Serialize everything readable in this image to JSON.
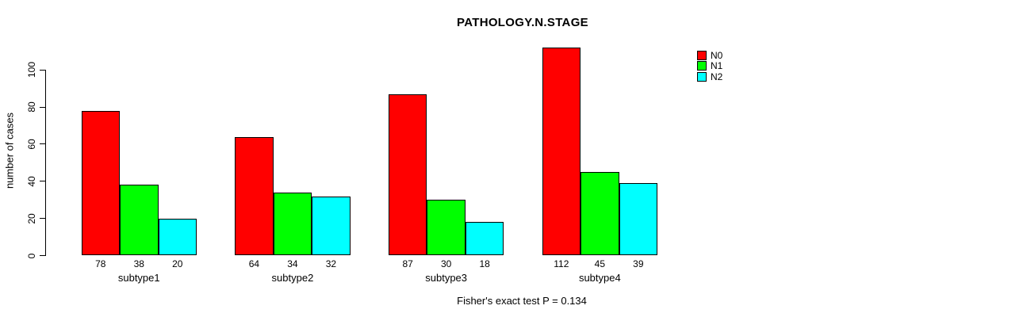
{
  "chart_data": {
    "type": "bar",
    "layout": "grouped",
    "title": "PATHOLOGY.N.STAGE",
    "xlabel": "",
    "ylabel": "number of cases",
    "annotation": "Fisher's exact test P = 0.134",
    "categories": [
      "subtype1",
      "subtype2",
      "subtype3",
      "subtype4"
    ],
    "series": [
      {
        "name": "N0",
        "color": "#ff0000",
        "values": [
          78,
          64,
          87,
          112
        ]
      },
      {
        "name": "N1",
        "color": "#00ff00",
        "values": [
          38,
          34,
          30,
          45
        ]
      },
      {
        "name": "N2",
        "color": "#00ffff",
        "values": [
          20,
          32,
          18,
          39
        ]
      }
    ],
    "bar_value_labels": {
      "subtype1": [
        78,
        38,
        20
      ],
      "subtype2": [
        64,
        34,
        32
      ],
      "subtype3": [
        87,
        30,
        18
      ],
      "subtype4": [
        112,
        45,
        39
      ]
    },
    "yticks": [
      0,
      20,
      40,
      60,
      80,
      100
    ],
    "ylim": [
      0,
      117
    ],
    "grid": false,
    "legend_position": "top-right",
    "legend_items": [
      "N0",
      "N1",
      "N2"
    ]
  }
}
